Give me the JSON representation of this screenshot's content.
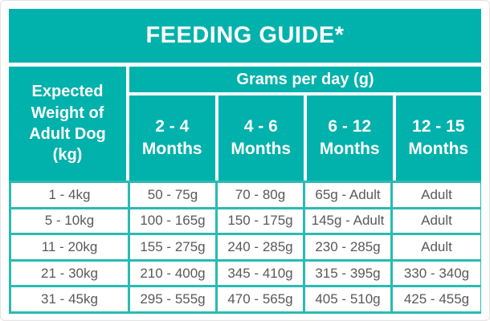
{
  "title": "FEEDING GUIDE*",
  "colors": {
    "teal_header": "#00b1ac",
    "teal_gridline": "#2bbab3",
    "header_text": "#ffffff",
    "cell_text": "#58595b",
    "background": "#ffffff"
  },
  "header": {
    "row_header_lines": [
      "Expected",
      "Weight of",
      "Adult Dog",
      "(kg)"
    ],
    "grams_label": "Grams per day (g)",
    "month_columns": [
      {
        "range": "2 - 4",
        "unit": "Months"
      },
      {
        "range": "4 - 6",
        "unit": "Months"
      },
      {
        "range": "6 - 12",
        "unit": "Months"
      },
      {
        "range": "12 - 15",
        "unit": "Months"
      }
    ]
  },
  "rows": [
    {
      "weight": "1 - 4kg",
      "values": [
        "50 - 75g",
        "70 - 80g",
        "65g - Adult",
        "Adult"
      ]
    },
    {
      "weight": "5 - 10kg",
      "values": [
        "100 - 165g",
        "150 - 175g",
        "145g - Adult",
        "Adult"
      ]
    },
    {
      "weight": "11 - 20kg",
      "values": [
        "155 - 275g",
        "240 - 285g",
        "230 - 285g",
        "Adult"
      ]
    },
    {
      "weight": "21 - 30kg",
      "values": [
        "210 - 400g",
        "345 - 410g",
        "315 - 395g",
        "330 - 340g"
      ]
    },
    {
      "weight": "31 - 45kg",
      "values": [
        "295 - 555g",
        "470 - 565g",
        "405 - 510g",
        "425 - 455g"
      ]
    }
  ]
}
